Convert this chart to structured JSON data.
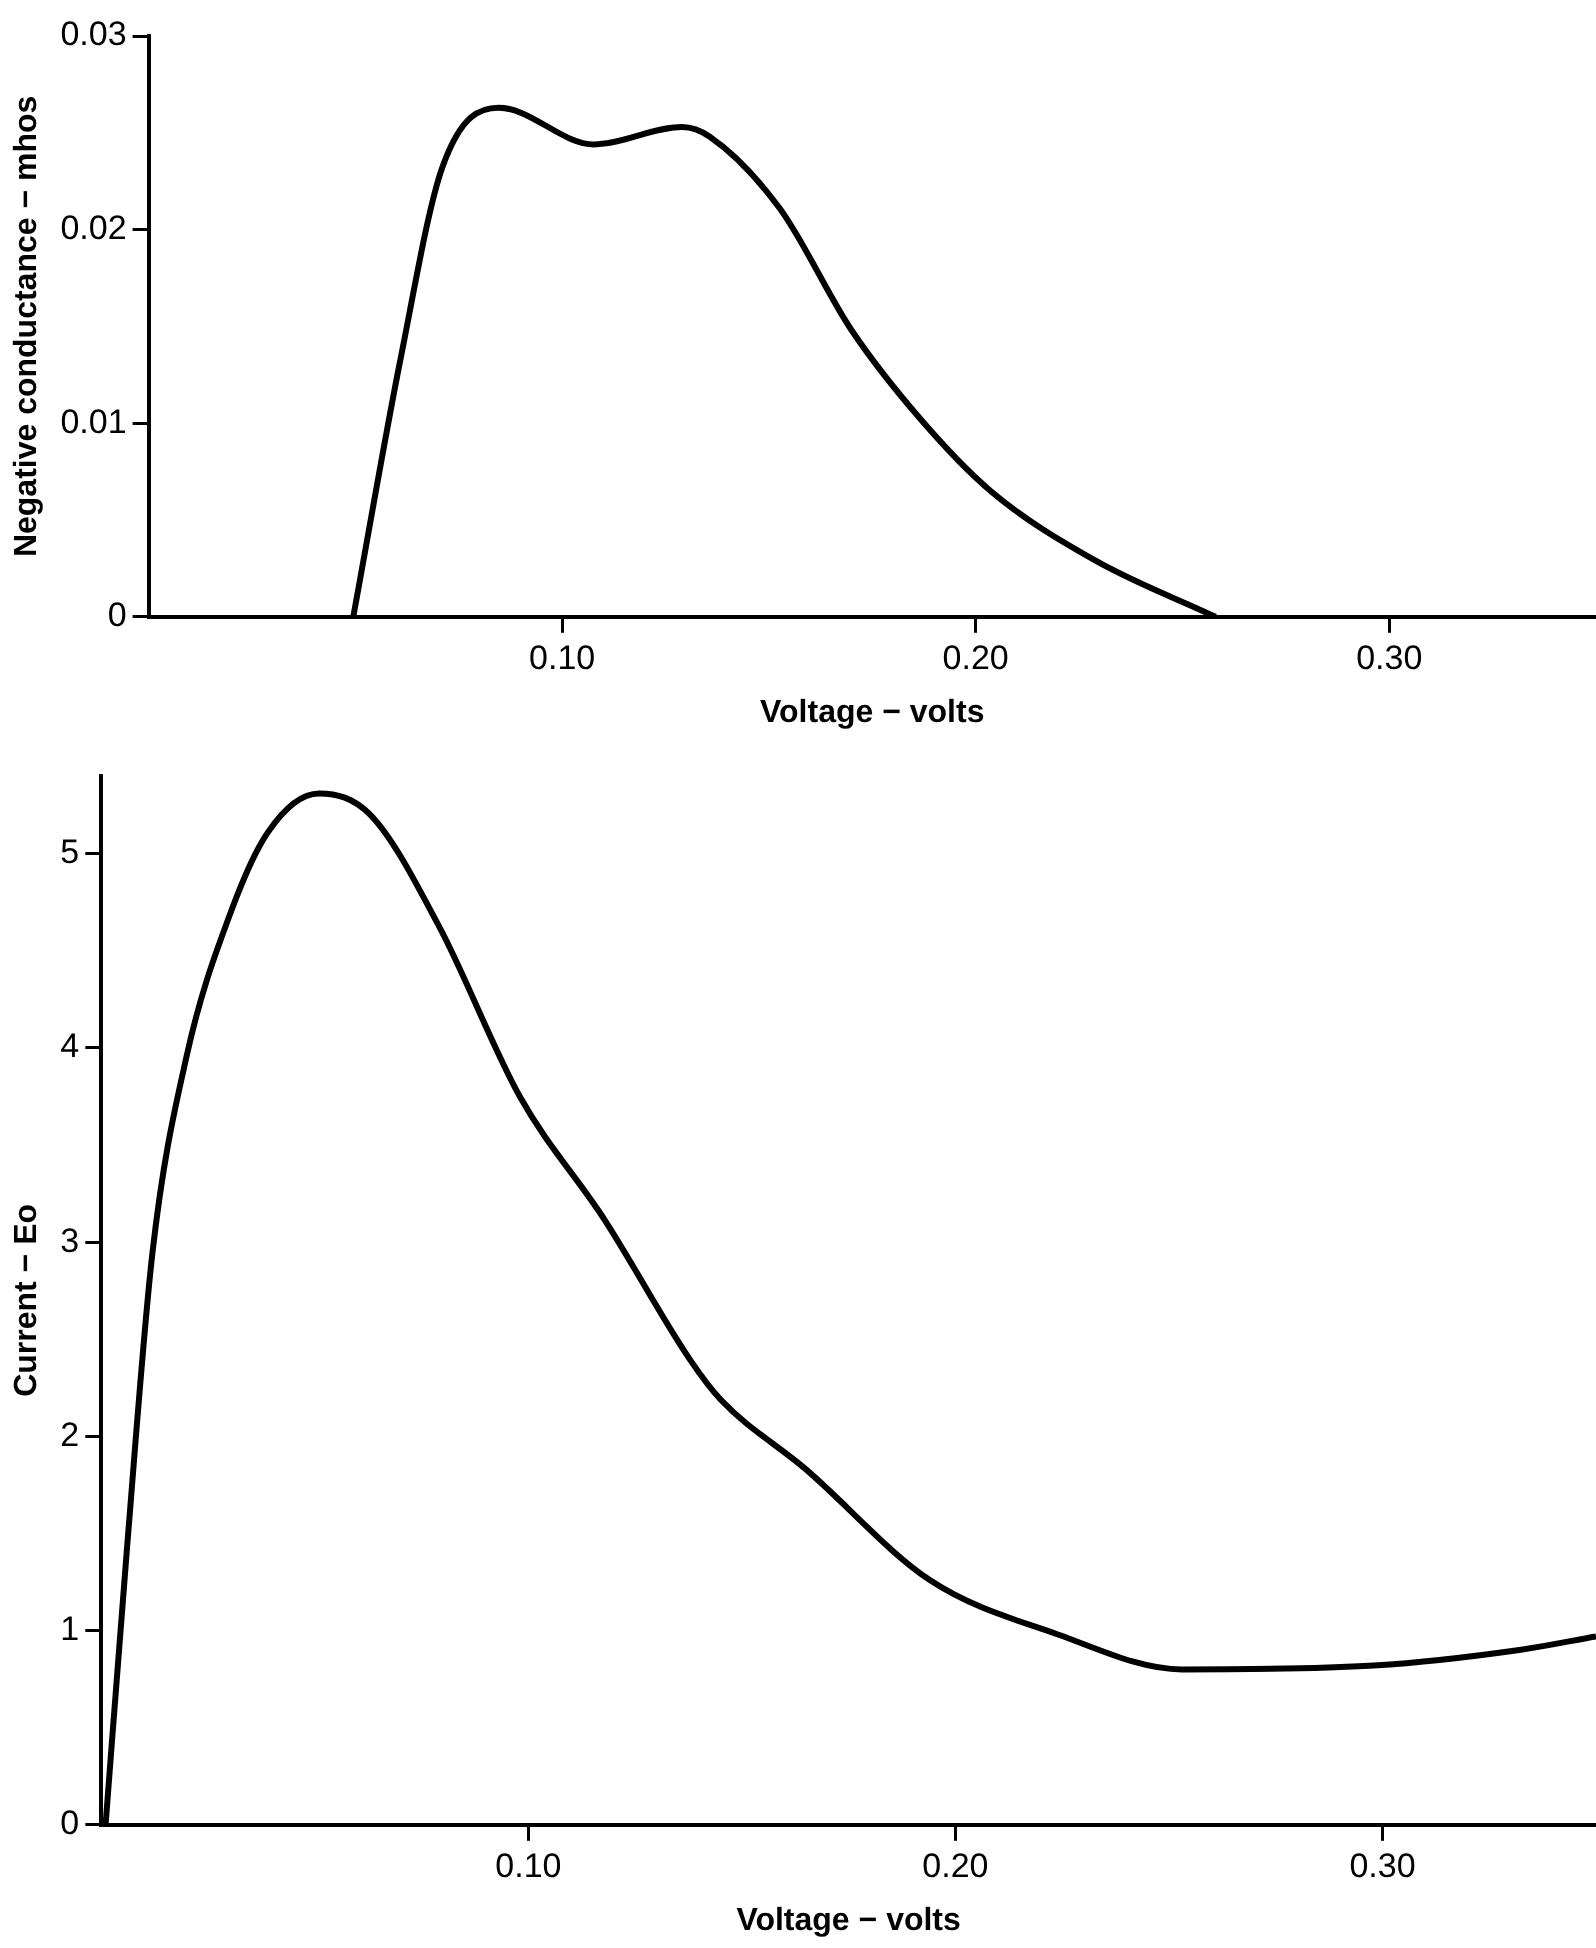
{
  "chart_data": [
    {
      "type": "line",
      "xlabel": "Voltage − volts",
      "ylabel": "Negative conductance − mhos",
      "xlim": [
        0,
        0.35
      ],
      "xticks": [
        {
          "value": 0.1,
          "label": "0.10"
        },
        {
          "value": 0.2,
          "label": "0.20"
        },
        {
          "value": 0.3,
          "label": "0.30"
        }
      ],
      "ylim": [
        0,
        0.03
      ],
      "yticks": [
        0,
        0.01,
        0.02,
        {
          "value": 0.03,
          "label": "0.03"
        }
      ],
      "grid": false,
      "legend": false,
      "marker": "none",
      "line_style": "solid",
      "series": [
        {
          "color": "#000000",
          "x": [
            0.0495,
            0.061,
            0.071,
            0.0847,
            0.1077,
            0.129,
            0.1357,
            0.1526,
            0.17,
            0.1867,
            0.2036,
            0.229,
            0.258
          ],
          "values": [
            0,
            0.0134,
            0.0232,
            0.0263,
            0.0244,
            0.0253,
            0.0248,
            0.0211,
            0.0148,
            0.0102,
            0.0065,
            0.0029,
            0
          ]
        }
      ]
    },
    {
      "type": "line",
      "xlabel": "Voltage − volts",
      "ylabel": "Current − Eo",
      "xlim": [
        0,
        0.35
      ],
      "xticks": [
        {
          "value": 0.1,
          "label": "0.10"
        },
        {
          "value": 0.2,
          "label": "0.20"
        },
        {
          "value": 0.3,
          "label": "0.30"
        }
      ],
      "ylim": [
        0,
        5.4
      ],
      "yticks": [
        0,
        1,
        2,
        3,
        4,
        5
      ],
      "grid": false,
      "legend": false,
      "marker": "none",
      "line_style": "solid",
      "series": [
        {
          "color": "#000000",
          "x": [
            0.001,
            0.006,
            0.012,
            0.02,
            0.03,
            0.039,
            0.051,
            0.063,
            0.079,
            0.098,
            0.118,
            0.138,
            0.145,
            0.165,
            0.194,
            0.224,
            0.253,
            0.298,
            0.332,
            0.35
          ],
          "values": [
            0,
            1.42,
            2.95,
            3.96,
            4.68,
            5.11,
            5.31,
            5.2,
            4.63,
            3.75,
            3.11,
            2.39,
            2.19,
            1.83,
            1.26,
            0.98,
            0.8,
            0.82,
            0.9,
            0.97
          ]
        }
      ]
    }
  ]
}
